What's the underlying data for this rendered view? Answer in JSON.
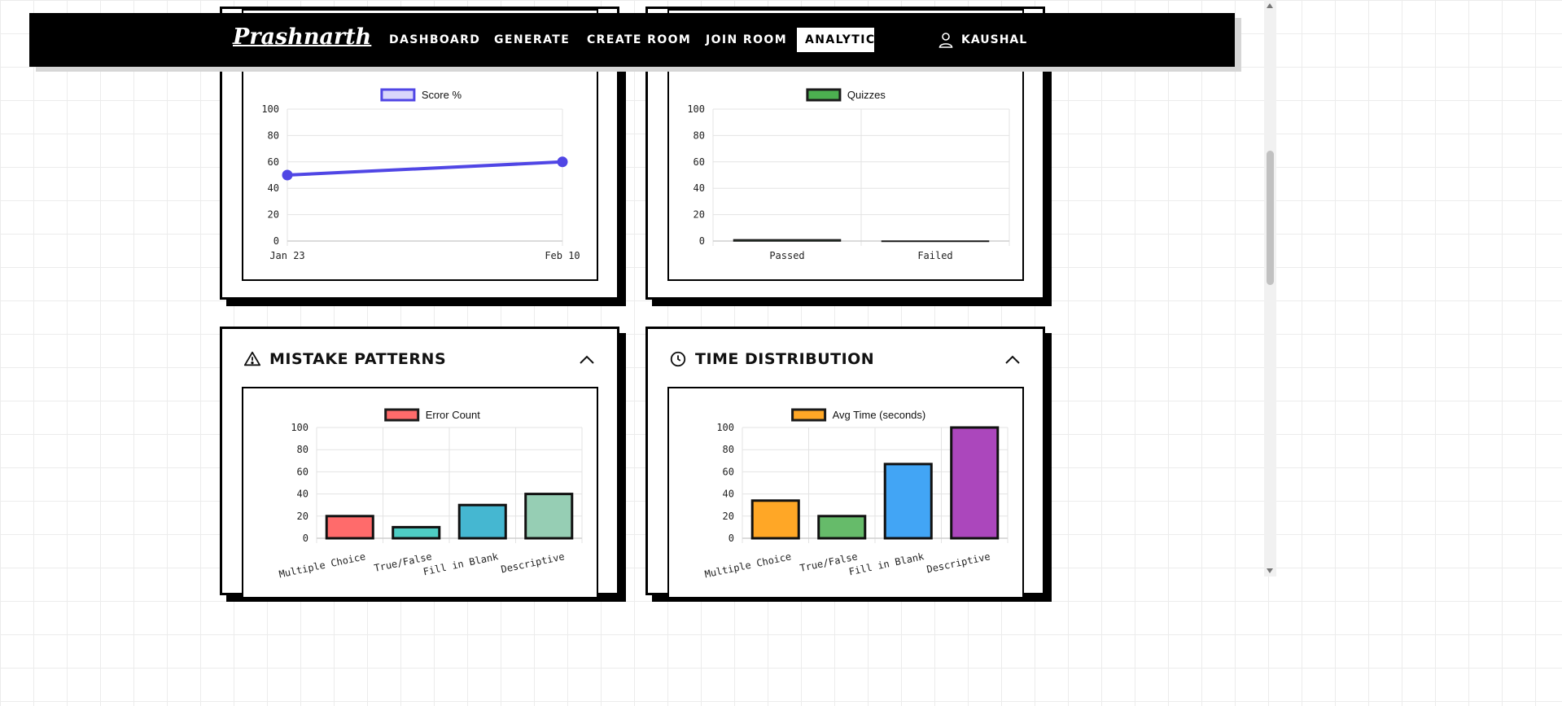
{
  "nav": {
    "logo": "Prashnarth",
    "items": [
      "DASHBOARD",
      "GENERATE",
      "CREATE ROOM",
      "JOIN ROOM",
      "ANALYTICS"
    ],
    "active": "ANALYTICS",
    "user": "KAUSHAL",
    "user_icon": "user-icon"
  },
  "colors": {
    "score_line": "#5046e5",
    "score_fill": "#d9d6fb",
    "quizzes": "#4caf50",
    "mistakes": [
      "#ff6b6b",
      "#4ecdc4",
      "#45b7d1",
      "#96ceb4"
    ],
    "times": [
      "#ffa726",
      "#66bb6a",
      "#42a5f5",
      "#ab47bc"
    ]
  },
  "cards": {
    "mistake_patterns": {
      "title": "MISTAKE PATTERNS",
      "icon": "alert-triangle-icon",
      "toggle_icon": "chevron-up-icon"
    },
    "time_distribution": {
      "title": "TIME DISTRIBUTION",
      "icon": "clock-icon",
      "toggle_icon": "chevron-up-icon"
    }
  },
  "chart_data": [
    {
      "id": "score",
      "type": "line",
      "x": [
        "Jan 23",
        "Feb 10"
      ],
      "series": [
        {
          "name": "Score %",
          "values": [
            50,
            60
          ]
        }
      ],
      "ylim": [
        0,
        100
      ],
      "yticks": [
        0,
        20,
        40,
        60,
        80,
        100
      ],
      "legend": "top"
    },
    {
      "id": "quizzes",
      "type": "bar",
      "categories": [
        "Passed",
        "Failed"
      ],
      "series": [
        {
          "name": "Quizzes",
          "values": [
            1,
            0
          ]
        }
      ],
      "ylim": [
        0,
        100
      ],
      "yticks": [
        0,
        20,
        40,
        60,
        80,
        100
      ],
      "legend": "top"
    },
    {
      "id": "mistakes",
      "type": "bar",
      "categories": [
        "Multiple Choice",
        "True/False",
        "Fill in Blank",
        "Descriptive"
      ],
      "series": [
        {
          "name": "Error Count",
          "values": [
            20,
            10,
            30,
            40
          ]
        }
      ],
      "ylim": [
        0,
        100
      ],
      "yticks": [
        0,
        20,
        40,
        60,
        80,
        100
      ],
      "legend": "top"
    },
    {
      "id": "time",
      "type": "bar",
      "categories": [
        "Multiple Choice",
        "True/False",
        "Fill in Blank",
        "Descriptive"
      ],
      "series": [
        {
          "name": "Avg Time (seconds)",
          "values": [
            34,
            20,
            67,
            100
          ]
        }
      ],
      "ylim": [
        0,
        100
      ],
      "yticks": [
        0,
        20,
        40,
        60,
        80,
        100
      ],
      "legend": "top"
    }
  ]
}
